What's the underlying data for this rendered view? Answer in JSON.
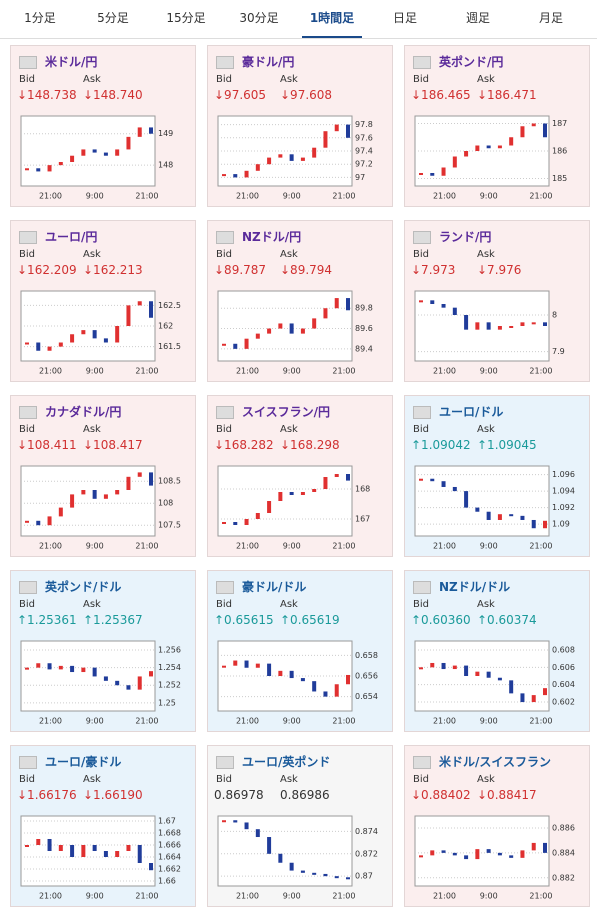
{
  "tabs": {
    "items": [
      "1分足",
      "5分足",
      "15分足",
      "30分足",
      "1時間足",
      "日足",
      "週足",
      "月足"
    ],
    "active": 4
  },
  "bid_label": "Bid",
  "ask_label": "Ask",
  "cards": [
    {
      "title": "米ドル/円",
      "bid": "↓148.738",
      "ask": "↓148.740",
      "background": "#fbeeee",
      "title_color": "#5a2a9a",
      "chart": {
        "xlabels": [
          "21:00",
          "9:00",
          "21:00"
        ],
        "ylim": [
          147.4,
          149.5
        ],
        "yticks": [
          148,
          149
        ],
        "values": [
          147.9,
          147.8,
          148.0,
          148.1,
          148.3,
          148.5,
          148.4,
          148.3,
          148.5,
          148.9,
          149.2,
          149.0
        ]
      }
    },
    {
      "title": "豪ドル/円",
      "bid": "↓97.605",
      "ask": "↓97.608",
      "background": "#fbeeee",
      "title_color": "#5a2a9a",
      "chart": {
        "xlabels": [
          "21:00",
          "9:00",
          "21:00"
        ],
        "ylim": [
          96.9,
          97.9
        ],
        "yticks": [
          97,
          97.2,
          97.4,
          97.6,
          97.8
        ],
        "values": [
          97.05,
          97.0,
          97.1,
          97.2,
          97.3,
          97.35,
          97.25,
          97.3,
          97.45,
          97.7,
          97.8,
          97.6
        ]
      }
    },
    {
      "title": "英ポンド/円",
      "bid": "↓186.465",
      "ask": "↓186.471",
      "background": "#fbeeee",
      "title_color": "#5a2a9a",
      "chart": {
        "xlabels": [
          "21:00",
          "9:00",
          "21:00"
        ],
        "ylim": [
          184.8,
          187.2
        ],
        "yticks": [
          185,
          186,
          187
        ],
        "values": [
          185.2,
          185.1,
          185.4,
          185.8,
          186.0,
          186.2,
          186.1,
          186.2,
          186.5,
          186.9,
          187.0,
          186.5
        ]
      }
    },
    {
      "title": "ユーロ/円",
      "bid": "↓162.209",
      "ask": "↓162.213",
      "background": "#fbeeee",
      "title_color": "#5a2a9a",
      "chart": {
        "xlabels": [
          "21:00",
          "9:00",
          "21:00"
        ],
        "ylim": [
          161.2,
          162.8
        ],
        "yticks": [
          161.5,
          162,
          162.5
        ],
        "values": [
          161.6,
          161.4,
          161.5,
          161.6,
          161.8,
          161.9,
          161.7,
          161.6,
          162.0,
          162.5,
          162.6,
          162.2
        ]
      }
    },
    {
      "title": "NZドル/円",
      "bid": "↓89.787",
      "ask": "↓89.794",
      "background": "#fbeeee",
      "title_color": "#5a2a9a",
      "chart": {
        "xlabels": [
          "21:00",
          "9:00",
          "21:00"
        ],
        "ylim": [
          89.3,
          89.95
        ],
        "yticks": [
          89.4,
          89.6,
          89.8
        ],
        "values": [
          89.45,
          89.4,
          89.5,
          89.55,
          89.6,
          89.65,
          89.55,
          89.6,
          89.7,
          89.8,
          89.9,
          89.78
        ]
      }
    },
    {
      "title": "ランド/円",
      "bid": "↓7.973",
      "ask": "↓7.976",
      "background": "#fbeeee",
      "title_color": "#5a2a9a",
      "chart": {
        "xlabels": [
          "21:00",
          "9:00",
          "21:00"
        ],
        "ylim": [
          7.88,
          8.06
        ],
        "yticks": [
          7.9,
          8
        ],
        "values": [
          8.04,
          8.03,
          8.02,
          8.0,
          7.96,
          7.98,
          7.96,
          7.97,
          7.97,
          7.98,
          7.98,
          7.97
        ]
      }
    },
    {
      "title": "カナダドル/円",
      "bid": "↓108.411",
      "ask": "↓108.417",
      "background": "#fbeeee",
      "title_color": "#5a2a9a",
      "chart": {
        "xlabels": [
          "21:00",
          "9:00",
          "21:00"
        ],
        "ylim": [
          107.3,
          108.8
        ],
        "yticks": [
          107.5,
          108,
          108.5
        ],
        "values": [
          107.6,
          107.5,
          107.7,
          107.9,
          108.2,
          108.3,
          108.1,
          108.2,
          108.3,
          108.6,
          108.7,
          108.4
        ]
      }
    },
    {
      "title": "スイスフラン/円",
      "bid": "↓168.282",
      "ask": "↓168.298",
      "background": "#fbeeee",
      "title_color": "#5a2a9a",
      "chart": {
        "xlabels": [
          "21:00",
          "9:00",
          "21:00"
        ],
        "ylim": [
          166.5,
          168.7
        ],
        "yticks": [
          167,
          168
        ],
        "values": [
          166.9,
          166.8,
          167.0,
          167.2,
          167.6,
          167.9,
          167.8,
          167.9,
          168.0,
          168.4,
          168.5,
          168.28
        ]
      }
    },
    {
      "title": "ユーロ/ドル",
      "bid": "↑1.09042",
      "ask": "↑1.09045",
      "background": "#e8f3fb",
      "title_color": "#1a5a9a",
      "chart": {
        "xlabels": [
          "21:00",
          "9:00",
          "21:00"
        ],
        "ylim": [
          1.0888,
          1.0968
        ],
        "yticks": [
          1.09,
          1.092,
          1.094,
          1.096
        ],
        "values": [
          1.0955,
          1.0952,
          1.0945,
          1.094,
          1.092,
          1.0915,
          1.0905,
          1.0912,
          1.091,
          1.0905,
          1.0895,
          1.0904
        ]
      }
    },
    {
      "title": "英ポンド/ドル",
      "bid": "↑1.25361",
      "ask": "↑1.25367",
      "background": "#e8f3fb",
      "title_color": "#1a5a9a",
      "chart": {
        "xlabels": [
          "21:00",
          "9:00",
          "21:00"
        ],
        "ylim": [
          1.2493,
          1.2568
        ],
        "yticks": [
          1.25,
          1.252,
          1.254,
          1.256
        ],
        "values": [
          1.254,
          1.2545,
          1.2538,
          1.2542,
          1.2535,
          1.254,
          1.253,
          1.2525,
          1.252,
          1.2515,
          1.253,
          1.2536
        ]
      }
    },
    {
      "title": "豪ドル/ドル",
      "bid": "↑0.65615",
      "ask": "↑0.65619",
      "background": "#e8f3fb",
      "title_color": "#1a5a9a",
      "chart": {
        "xlabels": [
          "21:00",
          "9:00",
          "21:00"
        ],
        "ylim": [
          0.6528,
          0.6592
        ],
        "yticks": [
          0.654,
          0.656,
          0.658
        ],
        "values": [
          0.657,
          0.6575,
          0.6568,
          0.6572,
          0.656,
          0.6565,
          0.6558,
          0.6555,
          0.6545,
          0.654,
          0.6552,
          0.6561
        ]
      }
    },
    {
      "title": "NZドル/ドル",
      "bid": "↑0.60360",
      "ask": "↑0.60374",
      "background": "#e8f3fb",
      "title_color": "#1a5a9a",
      "chart": {
        "xlabels": [
          "21:00",
          "9:00",
          "21:00"
        ],
        "ylim": [
          0.6012,
          0.6088
        ],
        "yticks": [
          0.602,
          0.604,
          0.606,
          0.608
        ],
        "values": [
          0.606,
          0.6065,
          0.6058,
          0.6062,
          0.605,
          0.6055,
          0.6048,
          0.6045,
          0.603,
          0.602,
          0.6028,
          0.6036
        ]
      }
    },
    {
      "title": "ユーロ/豪ドル",
      "bid": "↓1.66176",
      "ask": "↓1.66190",
      "background": "#e8f3fb",
      "title_color": "#1a5a9a",
      "chart": {
        "xlabels": [
          "21:00",
          "9:00",
          "21:00"
        ],
        "ylim": [
          1.6595,
          1.6705
        ],
        "yticks": [
          1.66,
          1.662,
          1.664,
          1.666,
          1.668,
          1.67
        ],
        "values": [
          1.666,
          1.667,
          1.665,
          1.666,
          1.664,
          1.666,
          1.665,
          1.664,
          1.665,
          1.666,
          1.663,
          1.6618
        ]
      }
    },
    {
      "title": "ユーロ/英ポンド",
      "bid": "0.86978",
      "ask": "0.86986",
      "background": "#f6f6f6",
      "title_color": "#1a5a9a",
      "chart": {
        "xlabels": [
          "21:00",
          "9:00",
          "21:00"
        ],
        "ylim": [
          0.8693,
          0.8752
        ],
        "yticks": [
          0.87,
          0.872,
          0.874
        ],
        "values": [
          0.875,
          0.8748,
          0.8742,
          0.8735,
          0.872,
          0.8712,
          0.8705,
          0.8703,
          0.8702,
          0.87,
          0.8699,
          0.8698
        ]
      }
    },
    {
      "title": "米ドル/スイスフラン",
      "bid": "↓0.88402",
      "ask": "↓0.88417",
      "background": "#fbeeee",
      "title_color": "#1a5a9a",
      "chart": {
        "xlabels": [
          "21:00",
          "9:00",
          "21:00"
        ],
        "ylim": [
          0.8815,
          0.8868
        ],
        "yticks": [
          0.882,
          0.884,
          0.886
        ],
        "values": [
          0.8838,
          0.8842,
          0.884,
          0.8838,
          0.8835,
          0.8843,
          0.884,
          0.8838,
          0.8836,
          0.8842,
          0.8848,
          0.884
        ]
      }
    }
  ]
}
